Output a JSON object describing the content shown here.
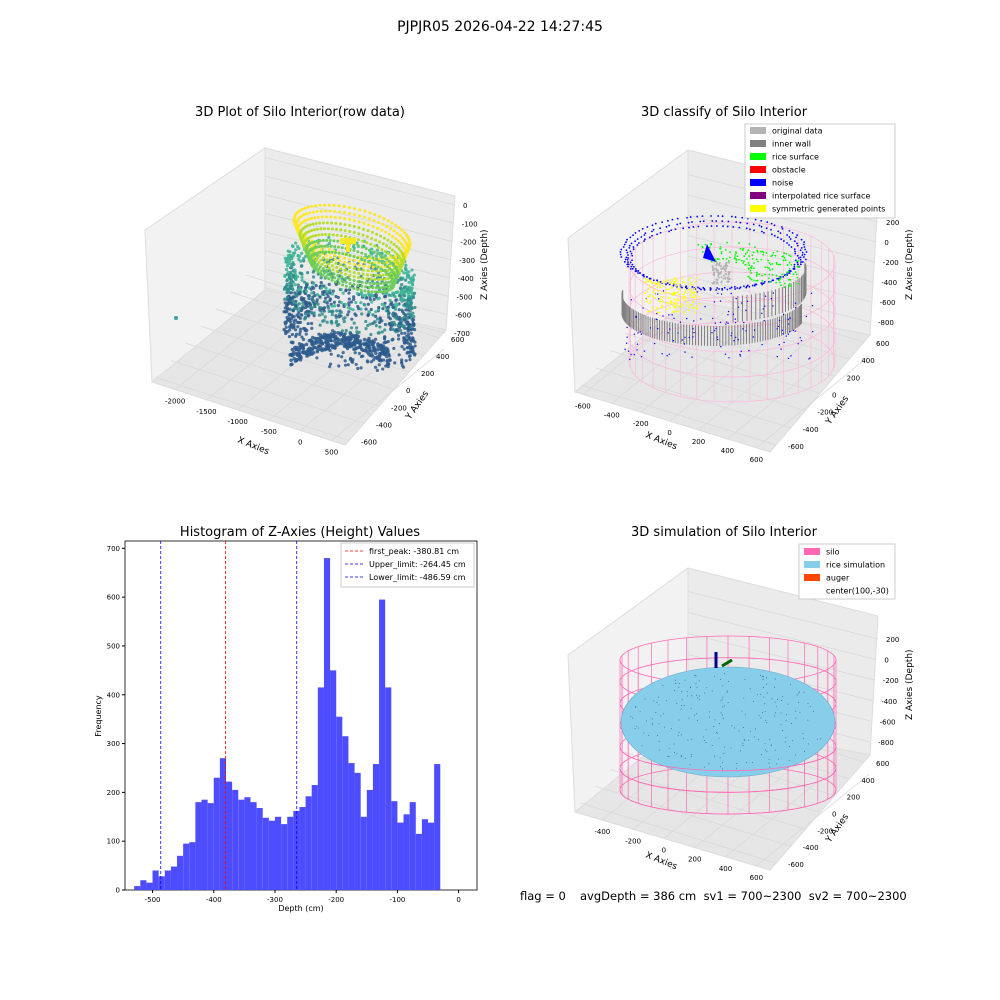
{
  "figure": {
    "suptitle": "PJPJR05 2026-04-22 14:27:45",
    "footer": {
      "flag": "flag = 0",
      "stats": "avgDepth = 386 cm  sv1 = 700~2300  sv2 = 700~2300"
    }
  },
  "chart_data": [
    {
      "type": "scatter3d",
      "title": "3D Plot of Silo Interior(row data)",
      "xlabel": "X Axies",
      "ylabel": "Y Axies",
      "zlabel": "Z Axies (Depth)",
      "x_ticks": [
        "-2000",
        "-1500",
        "-1000",
        "-500",
        "0",
        "500"
      ],
      "y_ticks": [
        "-600",
        "-400",
        "-200",
        "0",
        "200",
        "400",
        "600"
      ],
      "z_ticks": [
        "0",
        "-100",
        "-200",
        "-300",
        "-400",
        "-500",
        "-600",
        "-700"
      ],
      "colormap": "viridis",
      "colors": {
        "low": "#2d5b8c",
        "mid": "#3ab495",
        "high": "#fde725"
      }
    },
    {
      "type": "scatter3d",
      "title": "3D classify of Silo Interior",
      "xlabel": "X Axies",
      "ylabel": "Y Axies",
      "zlabel": "Z Axies (Depth)",
      "x_ticks": [
        "-600",
        "-400",
        "-200",
        "0",
        "200",
        "400",
        "600"
      ],
      "y_ticks": [
        "-600",
        "-400",
        "-200",
        "0",
        "200",
        "400",
        "600"
      ],
      "z_ticks": [
        "200",
        "0",
        "-200",
        "-400",
        "-600",
        "-800"
      ],
      "legend": [
        {
          "label": "original data",
          "color": "#b3b3b3"
        },
        {
          "label": "inner wall",
          "color": "#808080"
        },
        {
          "label": "rice surface",
          "color": "#00ff00"
        },
        {
          "label": "obstacle",
          "color": "#ff0000"
        },
        {
          "label": "noise",
          "color": "#0000ff"
        },
        {
          "label": "interpolated rice surface",
          "color": "#800080"
        },
        {
          "label": "symmetric generated points",
          "color": "#ffff00"
        }
      ],
      "legend_position": "top-right"
    },
    {
      "type": "bar",
      "title": "Histogram of Z-Axies (Height) Values",
      "xlabel": "Depth (cm)",
      "ylabel": "Frequency",
      "xlim": [
        -545,
        30
      ],
      "ylim": [
        0,
        715
      ],
      "x_ticks": [
        -500,
        -400,
        -300,
        -200,
        -100,
        0
      ],
      "y_ticks": [
        0,
        100,
        200,
        300,
        400,
        500,
        600,
        700
      ],
      "bar_color": "#4d4dff",
      "bin_edges_start": -530,
      "bin_width": 10,
      "values": [
        8,
        20,
        15,
        40,
        28,
        40,
        48,
        70,
        95,
        98,
        180,
        185,
        178,
        230,
        270,
        222,
        205,
        185,
        190,
        180,
        168,
        148,
        142,
        150,
        135,
        150,
        162,
        170,
        192,
        215,
        415,
        680,
        450,
        355,
        315,
        260,
        240,
        150,
        205,
        258,
        595,
        415,
        182,
        138,
        155,
        180,
        115,
        145,
        138,
        258
      ],
      "vlines": [
        {
          "label": "first_peak: -380.81 cm",
          "x": -380.81,
          "color": "#ff0000"
        },
        {
          "label": "Upper_limit: -264.45 cm",
          "x": -264.45,
          "color": "#0000ff"
        },
        {
          "label": "Lower_limit: -486.59 cm",
          "x": -486.59,
          "color": "#0000ff"
        }
      ],
      "legend_position": "top-right"
    },
    {
      "type": "surface3d",
      "title": "3D simulation of Silo Interior",
      "xlabel": "X Axies",
      "ylabel": "Y Axies",
      "zlabel": "Z Axies (Depth)",
      "x_ticks": [
        "-400",
        "-200",
        "0",
        "200",
        "400",
        "600"
      ],
      "y_ticks": [
        "-600",
        "-400",
        "-200",
        "0",
        "200",
        "400",
        "600"
      ],
      "z_ticks": [
        "200",
        "0",
        "-200",
        "-400",
        "-600",
        "-800"
      ],
      "legend": [
        {
          "label": "silo",
          "color": "#ff69b4"
        },
        {
          "label": "rice simulation",
          "color": "#87ceeb"
        },
        {
          "label": "auger",
          "color": "#ff4500"
        },
        {
          "label": "center(100,-30)",
          "color": ""
        }
      ],
      "legend_position": "top-right"
    }
  ]
}
